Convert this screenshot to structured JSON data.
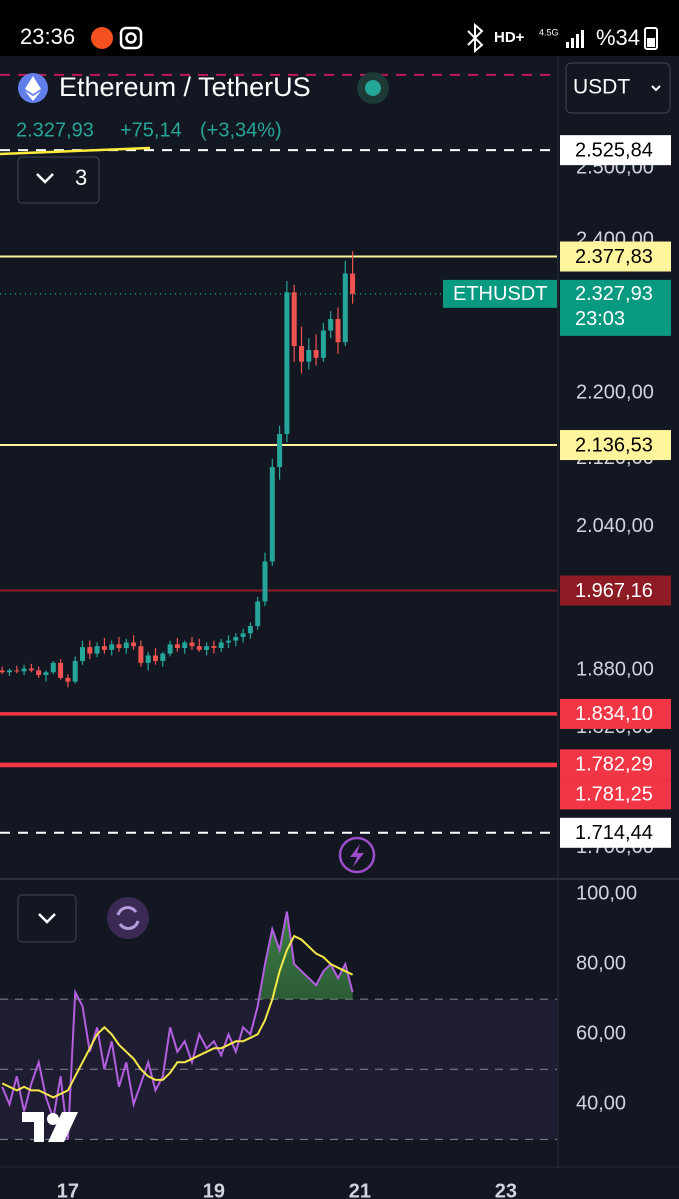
{
  "status_bar": {
    "time": "23:36",
    "hd": "HD+",
    "network": "4.5G",
    "battery": "%34"
  },
  "header": {
    "title": "Ethereum / TetherUS",
    "price": "2.327,93",
    "change": "+75,14",
    "change_percent": "(+3,34%)",
    "currency": "USDT",
    "indicator_count": "3"
  },
  "chart_data": [
    {
      "type": "candlestick",
      "x": [
        16.1,
        16.2,
        16.3,
        16.4,
        16.5,
        16.6,
        16.7,
        16.8,
        16.9,
        17.0,
        17.1,
        17.2,
        17.3,
        17.4,
        17.5,
        17.6,
        17.7,
        17.8,
        17.9,
        18.0,
        18.1,
        18.2,
        18.3,
        18.4,
        18.5,
        18.6,
        18.7,
        18.8,
        18.9,
        19.0,
        19.1,
        19.2,
        19.3,
        19.4,
        19.5,
        19.6,
        19.7,
        19.8,
        19.9,
        20.0,
        20.1,
        20.2,
        20.3,
        20.4,
        20.5,
        20.6,
        20.7,
        20.8,
        20.9
      ],
      "open": [
        1880,
        1878,
        1880,
        1879,
        1882,
        1880,
        1875,
        1878,
        1888,
        1872,
        1868,
        1890,
        1905,
        1898,
        1906,
        1902,
        1908,
        1904,
        1910,
        1906,
        1888,
        1896,
        1890,
        1898,
        1908,
        1904,
        1910,
        1906,
        1902,
        1906,
        1904,
        1910,
        1912,
        1916,
        1920,
        1928,
        1955,
        2000,
        2110,
        2150,
        2330,
        2260,
        2240,
        2255,
        2245,
        2280,
        2295,
        2265,
        2355
      ],
      "high": [
        1884,
        1882,
        1885,
        1886,
        1887,
        1884,
        1880,
        1890,
        1892,
        1876,
        1895,
        1912,
        1912,
        1910,
        1915,
        1912,
        1916,
        1914,
        1918,
        1912,
        1900,
        1904,
        1900,
        1912,
        1915,
        1912,
        1916,
        1914,
        1910,
        1912,
        1914,
        1918,
        1920,
        1925,
        1932,
        1960,
        2010,
        2120,
        2160,
        2345,
        2340,
        2285,
        2270,
        2275,
        2290,
        2305,
        2310,
        2372,
        2385
      ],
      "low": [
        1876,
        1874,
        1877,
        1875,
        1878,
        1872,
        1868,
        1876,
        1870,
        1862,
        1866,
        1886,
        1892,
        1894,
        1898,
        1896,
        1900,
        1898,
        1902,
        1884,
        1880,
        1886,
        1884,
        1895,
        1900,
        1898,
        1902,
        1900,
        1896,
        1898,
        1900,
        1904,
        1906,
        1910,
        1914,
        1924,
        1950,
        1995,
        2095,
        2140,
        2240,
        2225,
        2230,
        2235,
        2240,
        2270,
        2250,
        2260,
        2315
      ],
      "close": [
        1878,
        1880,
        1879,
        1882,
        1880,
        1875,
        1878,
        1888,
        1872,
        1868,
        1890,
        1905,
        1898,
        1906,
        1902,
        1908,
        1904,
        1910,
        1906,
        1888,
        1896,
        1890,
        1898,
        1908,
        1904,
        1910,
        1906,
        1902,
        1906,
        1904,
        1910,
        1912,
        1916,
        1920,
        1928,
        1955,
        2000,
        2110,
        2150,
        2330,
        2260,
        2240,
        2255,
        2245,
        2280,
        2295,
        2265,
        2355,
        2327.93
      ],
      "up_color": "#26a69a",
      "down_color": "#ef5350",
      "xlim": [
        16.07,
        23.7
      ],
      "ylim": [
        1671,
        2666
      ],
      "log_scale": true,
      "yticks": [
        {
          "value": 2500,
          "label": "2.500,00"
        },
        {
          "value": 2400,
          "label": "2.400,00"
        },
        {
          "value": 2200,
          "label": "2.200,00"
        },
        {
          "value": 2120,
          "label": "2.120,00"
        },
        {
          "value": 2040,
          "label": "2.040,00"
        },
        {
          "value": 1880,
          "label": "1.880,00"
        },
        {
          "value": 1820,
          "label": "1.820,00"
        },
        {
          "value": 1700,
          "label": "1.700,00"
        }
      ],
      "price_lines": [
        {
          "value": 2636,
          "color": "#c2185b",
          "style": "dashed"
        },
        {
          "value": 2525.84,
          "label": "2.525,84",
          "color": "#ffffff",
          "style": "dashed"
        },
        {
          "value": 2377.83,
          "label": "2.377,83",
          "color": "#fff59d",
          "style": "solid"
        },
        {
          "value": 2136.53,
          "label": "2.136,53",
          "color": "#fff59d",
          "style": "solid"
        },
        {
          "value": 1967.16,
          "label": "1.967,16",
          "color": "#8c1b24",
          "style": "solid"
        },
        {
          "value": 1834.1,
          "label": "1.834,10",
          "color": "#f23645",
          "style": "thick"
        },
        {
          "value": 1782.29,
          "label": "1.782,29",
          "color": "#f23645",
          "style": "thick"
        },
        {
          "value": 1781.25,
          "label": "1.781,25",
          "color": "#f23645",
          "style": "thick"
        },
        {
          "value": 1714.44,
          "label": "1.714,44",
          "color": "#ffffff",
          "style": "dashed"
        }
      ],
      "last_price": {
        "value": 2327.93,
        "label": "2.327,93",
        "symbol": "ETHUSDT",
        "countdown": "23:03",
        "color": "#089981"
      }
    },
    {
      "type": "line",
      "x": [
        16.1,
        16.2,
        16.3,
        16.4,
        16.5,
        16.6,
        16.7,
        16.8,
        16.9,
        17.0,
        17.1,
        17.2,
        17.3,
        17.4,
        17.5,
        17.6,
        17.7,
        17.8,
        17.9,
        18.0,
        18.1,
        18.2,
        18.3,
        18.4,
        18.5,
        18.6,
        18.7,
        18.8,
        18.9,
        19.0,
        19.1,
        19.2,
        19.3,
        19.4,
        19.5,
        19.6,
        19.7,
        19.8,
        19.9,
        20.0,
        20.1,
        20.2,
        20.3,
        20.4,
        20.5,
        20.6,
        20.7,
        20.8,
        20.9
      ],
      "series": [
        {
          "color": "#b35fe0",
          "values": [
            45,
            40,
            48,
            38,
            46,
            52,
            42,
            36,
            48,
            30,
            72,
            68,
            55,
            62,
            50,
            58,
            45,
            52,
            40,
            46,
            52,
            44,
            48,
            62,
            55,
            58,
            52,
            60,
            56,
            58,
            54,
            60,
            55,
            62,
            60,
            68,
            80,
            90,
            84,
            95,
            80,
            78,
            76,
            74,
            78,
            80,
            76,
            80,
            72
          ]
        },
        {
          "color": "#f5e94a",
          "values": [
            46,
            45,
            44,
            45,
            44,
            44,
            43,
            42,
            43,
            44,
            48,
            52,
            56,
            60,
            62,
            60,
            57,
            55,
            53,
            50,
            48,
            47,
            47,
            49,
            52,
            52,
            53,
            54,
            55,
            56,
            56,
            57,
            58,
            58,
            59,
            60,
            64,
            70,
            78,
            84,
            88,
            87,
            85,
            83,
            82,
            80,
            79,
            78,
            77
          ]
        }
      ],
      "xlim": [
        16.07,
        23.7
      ],
      "ylim": [
        23,
        104
      ],
      "yticks": [
        {
          "value": 100,
          "label": "100,00"
        },
        {
          "value": 80,
          "label": "80,00"
        },
        {
          "value": 60,
          "label": "60,00"
        },
        {
          "value": 40,
          "label": "40,00"
        }
      ],
      "bands": [
        70,
        50,
        30
      ],
      "xticks": [
        17,
        19,
        21,
        23
      ]
    }
  ]
}
